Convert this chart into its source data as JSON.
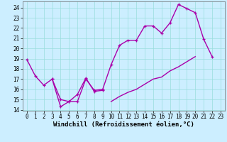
{
  "xlabel": "Windchill (Refroidissement éolien,°C)",
  "bg_color": "#cceeff",
  "grid_color": "#99dddd",
  "line_color": "#aa00aa",
  "line_width": 1.0,
  "xlim": [
    -0.5,
    23.5
  ],
  "ylim": [
    13.9,
    24.6
  ],
  "xticks": [
    0,
    1,
    2,
    3,
    4,
    5,
    6,
    7,
    8,
    9,
    10,
    11,
    12,
    13,
    14,
    15,
    16,
    17,
    18,
    19,
    20,
    21,
    22,
    23
  ],
  "yticks": [
    14,
    15,
    16,
    17,
    18,
    19,
    20,
    21,
    22,
    23,
    24
  ],
  "line1_x": [
    0,
    1,
    2,
    3,
    4,
    5,
    6,
    7,
    8,
    9,
    10,
    11,
    12,
    13,
    14,
    15,
    16,
    17,
    18,
    19,
    20,
    21,
    22
  ],
  "line1_y": [
    18.9,
    17.3,
    16.4,
    17.0,
    14.3,
    14.8,
    14.8,
    17.0,
    15.9,
    16.0,
    18.4,
    20.3,
    20.8,
    20.8,
    22.2,
    22.2,
    21.5,
    22.5,
    24.3,
    23.9,
    23.5,
    20.9,
    19.2
  ],
  "line2_x": [
    3,
    4,
    5,
    6,
    7,
    8,
    9
  ],
  "line2_y": [
    17.0,
    15.0,
    14.8,
    15.5,
    17.1,
    15.8,
    15.9
  ],
  "line3_x": [
    10,
    11,
    12,
    13,
    14,
    15,
    16,
    17,
    18,
    19,
    20
  ],
  "line3_y": [
    14.8,
    15.3,
    15.7,
    16.0,
    16.5,
    17.0,
    17.2,
    17.8,
    18.2,
    18.7,
    19.2
  ],
  "tick_fontsize": 5.5,
  "xlabel_fontsize": 6.5
}
